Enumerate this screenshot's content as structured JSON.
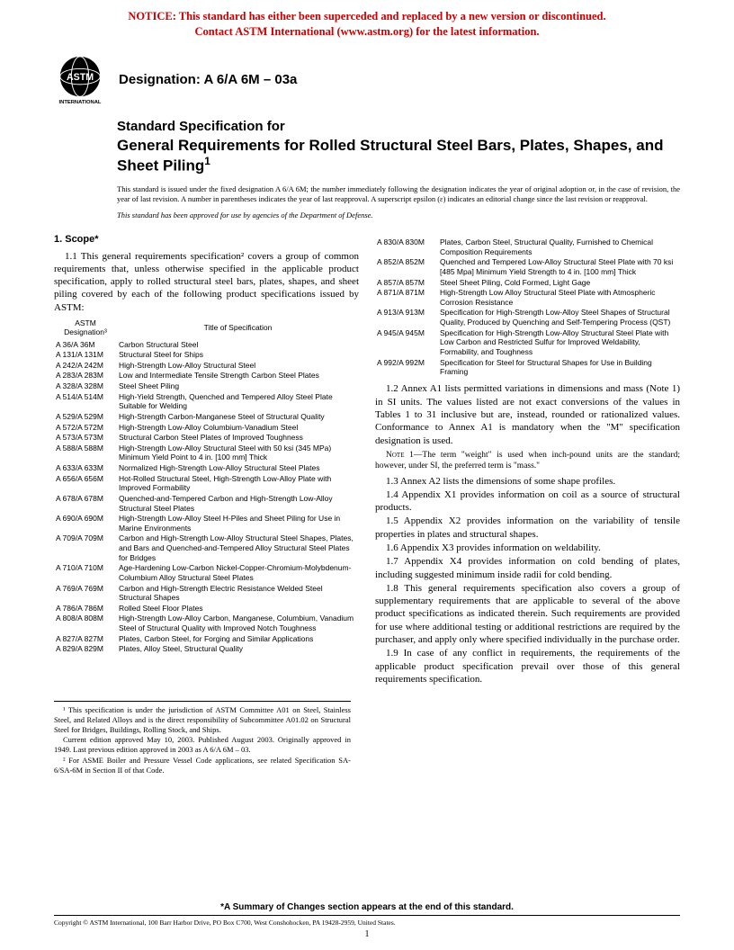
{
  "notice": {
    "line1": "NOTICE: This standard has either been superceded and replaced by a new version or discontinued.",
    "line2": "Contact ASTM International (www.astm.org) for the latest information."
  },
  "designation_label": "Designation: A 6/A 6M – 03a",
  "title_lead": "Standard Specification for",
  "title_main": "General Requirements for Rolled Structural Steel Bars, Plates, Shapes, and Sheet Piling",
  "title_sup": "1",
  "issuance": "This standard is issued under the fixed designation A 6/A 6M; the number immediately following the designation indicates the year of original adoption or, in the case of revision, the year of last revision. A number in parentheses indicates the year of last reapproval. A superscript epsilon (ε) indicates an editorial change since the last revision or reapproval.",
  "approval": "This standard has been approved for use by agencies of the Department of Defense.",
  "scope_head": "1. Scope*",
  "para_1_1": "1.1 This general requirements specification² covers a group of common requirements that, unless otherwise specified in the applicable product specification, apply to rolled structural steel bars, plates, shapes, and sheet piling covered by each of the following product specifications issued by ASTM:",
  "table_heads": {
    "c1": "ASTM\nDesignation³",
    "c2": "Title of Specification"
  },
  "specs_left": [
    [
      "A 36/A 36M",
      "Carbon Structural Steel"
    ],
    [
      "A 131/A 131M",
      "Structural Steel for Ships"
    ],
    [
      "A 242/A 242M",
      "High-Strength Low-Alloy Structural Steel"
    ],
    [
      "A 283/A 283M",
      "Low and Intermediate Tensile Strength Carbon Steel Plates"
    ],
    [
      "A 328/A 328M",
      "Steel Sheet Piling"
    ],
    [
      "A 514/A 514M",
      "High-Yield Strength, Quenched and Tempered Alloy Steel Plate Suitable for Welding"
    ],
    [
      "A 529/A 529M",
      "High-Strength Carbon-Manganese Steel of Structural Quality"
    ],
    [
      "A 572/A 572M",
      "High-Strength Low-Alloy Columbium-Vanadium Steel"
    ],
    [
      "A 573/A 573M",
      "Structural Carbon Steel Plates of Improved Toughness"
    ],
    [
      "A 588/A 588M",
      "High-Strength Low-Alloy Structural Steel with 50 ksi (345 MPa) Minimum Yield Point to 4 in. [100 mm] Thick"
    ],
    [
      "A 633/A 633M",
      "Normalized High-Strength Low-Alloy Structural Steel Plates"
    ],
    [
      "A 656/A 656M",
      "Hot-Rolled Structural Steel, High-Strength Low-Alloy Plate with Improved Formability"
    ],
    [
      "A 678/A 678M",
      "Quenched-and-Tempered Carbon and High-Strength Low-Alloy Structural Steel Plates"
    ],
    [
      "A 690/A 690M",
      "High-Strength Low-Alloy Steel H-Piles and Sheet Piling for Use in Marine Environments"
    ],
    [
      "A 709/A 709M",
      "Carbon and High-Strength Low-Alloy Structural Steel Shapes, Plates, and Bars and Quenched-and-Tempered Alloy Structural Steel Plates for Bridges"
    ],
    [
      "A 710/A 710M",
      "Age-Hardening Low-Carbon Nickel-Copper-Chromium-Molybdenum-Columbium Alloy Structural Steel Plates"
    ],
    [
      "A 769/A 769M",
      "Carbon and High-Strength Electric Resistance Welded Steel Structural Shapes"
    ],
    [
      "A 786/A 786M",
      "Rolled Steel Floor Plates"
    ],
    [
      "A 808/A 808M",
      "High-Strength Low-Alloy Carbon, Manganese, Columbium, Vanadium Steel of Structural Quality with Improved Notch Toughness"
    ],
    [
      "A 827/A 827M",
      "Plates, Carbon Steel, for Forging and Similar Applications"
    ],
    [
      "A 829/A 829M",
      "Plates, Alloy Steel, Structural Quality"
    ]
  ],
  "specs_right": [
    [
      "A 830/A 830M",
      "Plates, Carbon Steel, Structural Quality, Furnished to Chemical Composition Requirements"
    ],
    [
      "A 852/A 852M",
      "Quenched and Tempered Low-Alloy Structural Steel Plate with 70 ksi [485 Mpa] Minimum Yield Strength to 4 in. [100 mm] Thick"
    ],
    [
      "A 857/A 857M",
      "Steel Sheet Piling, Cold Formed, Light Gage"
    ],
    [
      "A 871/A 871M",
      "High-Strength Low Alloy Structural Steel Plate with Atmospheric Corrosion Resistance"
    ],
    [
      "A 913/A 913M",
      "Specification for High-Strength Low-Alloy Steel Shapes of Structural Quality, Produced by Quenching and Self-Tempering Process (QST)"
    ],
    [
      "A 945/A 945M",
      "Specification for High-Strength Low-Alloy Structural Steel Plate with Low Carbon and Restricted Sulfur for Improved Weldability, Formability, and Toughness"
    ],
    [
      "A 992/A 992M",
      "Specification for Steel for Structural Shapes for Use in Building Framing"
    ]
  ],
  "para_1_2": "1.2 Annex A1 lists permitted variations in dimensions and mass (Note 1) in SI units. The values listed are not exact conversions of the values in Tables 1 to 31 inclusive but are, instead, rounded or rationalized values. Conformance to Annex A1 is mandatory when the \"M\" specification designation is used.",
  "note1": "1—The term \"weight\" is used when inch-pound units are the standard; however, under SI, the preferred term is \"mass.\"",
  "para_1_3": "1.3 Annex A2 lists the dimensions of some shape profiles.",
  "para_1_4": "1.4 Appendix X1 provides information on coil as a source of structural products.",
  "para_1_5": "1.5 Appendix X2 provides information on the variability of tensile properties in plates and structural shapes.",
  "para_1_6": "1.6 Appendix X3 provides information on weldability.",
  "para_1_7": "1.7 Appendix X4 provides information on cold bending of plates, including suggested minimum inside radii for cold bending.",
  "para_1_8": "1.8 This general requirements specification also covers a group of supplementary requirements that are applicable to several of the above product specifications as indicated therein. Such requirements are provided for use where additional testing or additional restrictions are required by the purchaser, and apply only where specified individually in the purchase order.",
  "para_1_9": "1.9 In case of any conflict in requirements, the requirements of the applicable product specification prevail over those of this general requirements specification.",
  "footnote1": "¹ This specification is under the jurisdiction of ASTM Committee A01 on Steel, Stainless Steel, and Related Alloys and is the direct responsibility of Subcommittee A01.02 on Structural Steel for Bridges, Buildings, Rolling Stock, and Ships.",
  "footnote1b": "Current edition approved May 10, 2003. Published August 2003. Originally approved in 1949. Last previous edition approved in 2003 as A 6/A 6M – 03.",
  "footnote2": "² For ASME Boiler and Pressure Vessel Code applications, see related Specification SA-6/SA-6M in Section II of that Code.",
  "summary": "*A Summary of Changes section appears at the end of this standard.",
  "copyright": "Copyright © ASTM International, 100 Barr Harbor Drive, PO Box C700, West Conshohocken, PA 19428-2959, United States.",
  "pagenum": "1",
  "logo_text": "INTERNATIONAL",
  "colors": {
    "notice": "#cc0000",
    "text": "#000000",
    "bg": "#ffffff"
  }
}
